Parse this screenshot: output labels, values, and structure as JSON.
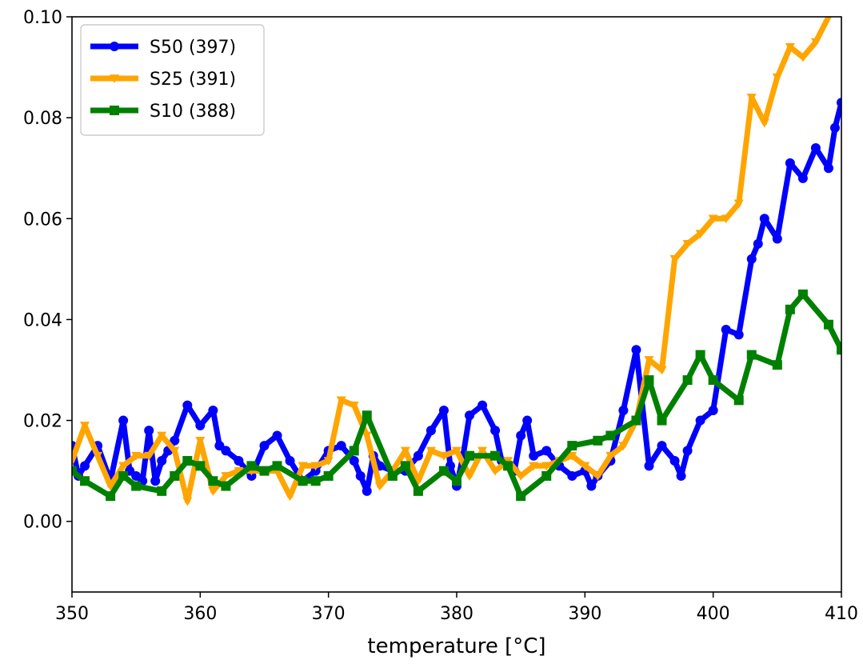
{
  "chart_data": {
    "type": "line",
    "title": "",
    "xlabel": "temperature [°C]",
    "ylabel": "",
    "xlim": [
      350,
      410
    ],
    "ylim": [
      -0.014,
      0.1
    ],
    "grid": false,
    "legend_position": "upper-left",
    "x_ticks": [
      350,
      360,
      370,
      380,
      390,
      400,
      410
    ],
    "x_tick_labels": [
      "350",
      "360",
      "370",
      "380",
      "390",
      "400",
      "410"
    ],
    "y_ticks": [
      0.0,
      0.02,
      0.04,
      0.06,
      0.08,
      0.1
    ],
    "y_tick_labels": [
      "0.00",
      "0.02",
      "0.04",
      "0.06",
      "0.08",
      "0.10"
    ],
    "series": [
      {
        "name": "S50 (397)",
        "color": "#0000ff",
        "marker": "circle",
        "points": [
          [
            350,
            0.015
          ],
          [
            350.5,
            0.009
          ],
          [
            351,
            0.011
          ],
          [
            352,
            0.015
          ],
          [
            353,
            0.008
          ],
          [
            354,
            0.02
          ],
          [
            354.5,
            0.01
          ],
          [
            355,
            0.009
          ],
          [
            355.5,
            0.008
          ],
          [
            356,
            0.018
          ],
          [
            356.5,
            0.008
          ],
          [
            357,
            0.012
          ],
          [
            357.5,
            0.014
          ],
          [
            358,
            0.016
          ],
          [
            359,
            0.023
          ],
          [
            360,
            0.019
          ],
          [
            361,
            0.022
          ],
          [
            361.5,
            0.015
          ],
          [
            362,
            0.014
          ],
          [
            363,
            0.012
          ],
          [
            364,
            0.009
          ],
          [
            365,
            0.015
          ],
          [
            366,
            0.017
          ],
          [
            367,
            0.012
          ],
          [
            368,
            0.008
          ],
          [
            369,
            0.01
          ],
          [
            370,
            0.014
          ],
          [
            371,
            0.015
          ],
          [
            372,
            0.012
          ],
          [
            372.5,
            0.009
          ],
          [
            373,
            0.006
          ],
          [
            373.5,
            0.013
          ],
          [
            374,
            0.011
          ],
          [
            375,
            0.01
          ],
          [
            376,
            0.01
          ],
          [
            377,
            0.013
          ],
          [
            378,
            0.018
          ],
          [
            379,
            0.022
          ],
          [
            379.5,
            0.011
          ],
          [
            380,
            0.007
          ],
          [
            380.5,
            0.013
          ],
          [
            381,
            0.021
          ],
          [
            382,
            0.023
          ],
          [
            383,
            0.018
          ],
          [
            383.5,
            0.012
          ],
          [
            384,
            0.011
          ],
          [
            384.5,
            0.01
          ],
          [
            385,
            0.017
          ],
          [
            385.5,
            0.02
          ],
          [
            386,
            0.013
          ],
          [
            387,
            0.014
          ],
          [
            388,
            0.011
          ],
          [
            389,
            0.009
          ],
          [
            390,
            0.01
          ],
          [
            390.5,
            0.007
          ],
          [
            391,
            0.009
          ],
          [
            392,
            0.012
          ],
          [
            393,
            0.022
          ],
          [
            394,
            0.034
          ],
          [
            395,
            0.011
          ],
          [
            396,
            0.015
          ],
          [
            397,
            0.012
          ],
          [
            397.5,
            0.009
          ],
          [
            398,
            0.014
          ],
          [
            399,
            0.02
          ],
          [
            400,
            0.022
          ],
          [
            401,
            0.038
          ],
          [
            402,
            0.037
          ],
          [
            403,
            0.052
          ],
          [
            403.5,
            0.055
          ],
          [
            404,
            0.06
          ],
          [
            405,
            0.056
          ],
          [
            406,
            0.071
          ],
          [
            407,
            0.068
          ],
          [
            408,
            0.074
          ],
          [
            409,
            0.07
          ],
          [
            409.5,
            0.078
          ],
          [
            410,
            0.083
          ]
        ]
      },
      {
        "name": "S25 (391)",
        "color": "#ffa500",
        "marker": "triangle-down",
        "points": [
          [
            350,
            0.012
          ],
          [
            351,
            0.019
          ],
          [
            352,
            0.013
          ],
          [
            353,
            0.007
          ],
          [
            354,
            0.011
          ],
          [
            355,
            0.013
          ],
          [
            356,
            0.013
          ],
          [
            357,
            0.017
          ],
          [
            358,
            0.014
          ],
          [
            359,
            0.004
          ],
          [
            360,
            0.016
          ],
          [
            361,
            0.006
          ],
          [
            362,
            0.009
          ],
          [
            363,
            0.01
          ],
          [
            364,
            0.01
          ],
          [
            365,
            0.01
          ],
          [
            366,
            0.01
          ],
          [
            367,
            0.005
          ],
          [
            368,
            0.011
          ],
          [
            369,
            0.011
          ],
          [
            370,
            0.012
          ],
          [
            371,
            0.024
          ],
          [
            372,
            0.023
          ],
          [
            373,
            0.017
          ],
          [
            374,
            0.007
          ],
          [
            375,
            0.01
          ],
          [
            376,
            0.014
          ],
          [
            377,
            0.008
          ],
          [
            378,
            0.014
          ],
          [
            379,
            0.013
          ],
          [
            380,
            0.014
          ],
          [
            381,
            0.009
          ],
          [
            382,
            0.014
          ],
          [
            383,
            0.01
          ],
          [
            384,
            0.012
          ],
          [
            385,
            0.009
          ],
          [
            386,
            0.011
          ],
          [
            387,
            0.011
          ],
          [
            388,
            0.012
          ],
          [
            389,
            0.013
          ],
          [
            390,
            0.011
          ],
          [
            391,
            0.009
          ],
          [
            392,
            0.013
          ],
          [
            393,
            0.015
          ],
          [
            394,
            0.02
          ],
          [
            395,
            0.032
          ],
          [
            396,
            0.03
          ],
          [
            397,
            0.052
          ],
          [
            398,
            0.055
          ],
          [
            399,
            0.057
          ],
          [
            400,
            0.06
          ],
          [
            401,
            0.06
          ],
          [
            402,
            0.063
          ],
          [
            403,
            0.084
          ],
          [
            404,
            0.079
          ],
          [
            405,
            0.088
          ],
          [
            406,
            0.094
          ],
          [
            407,
            0.092
          ],
          [
            408,
            0.095
          ],
          [
            409,
            0.1
          ]
        ]
      },
      {
        "name": "S10 (388)",
        "color": "#008000",
        "marker": "square",
        "points": [
          [
            350,
            0.01
          ],
          [
            351,
            0.008
          ],
          [
            353,
            0.005
          ],
          [
            354,
            0.009
          ],
          [
            355,
            0.007
          ],
          [
            357,
            0.006
          ],
          [
            358,
            0.009
          ],
          [
            359,
            0.012
          ],
          [
            360,
            0.011
          ],
          [
            361,
            0.008
          ],
          [
            362,
            0.007
          ],
          [
            364,
            0.011
          ],
          [
            365,
            0.01
          ],
          [
            366,
            0.011
          ],
          [
            368,
            0.008
          ],
          [
            369,
            0.008
          ],
          [
            370,
            0.009
          ],
          [
            372,
            0.014
          ],
          [
            373,
            0.021
          ],
          [
            375,
            0.009
          ],
          [
            376,
            0.011
          ],
          [
            377,
            0.006
          ],
          [
            379,
            0.01
          ],
          [
            380,
            0.008
          ],
          [
            381,
            0.013
          ],
          [
            383,
            0.013
          ],
          [
            384,
            0.011
          ],
          [
            385,
            0.005
          ],
          [
            387,
            0.009
          ],
          [
            389,
            0.015
          ],
          [
            391,
            0.016
          ],
          [
            392,
            0.017
          ],
          [
            394,
            0.02
          ],
          [
            395,
            0.028
          ],
          [
            396,
            0.02
          ],
          [
            398,
            0.028
          ],
          [
            399,
            0.033
          ],
          [
            400,
            0.028
          ],
          [
            402,
            0.024
          ],
          [
            403,
            0.033
          ],
          [
            405,
            0.031
          ],
          [
            406,
            0.042
          ],
          [
            407,
            0.045
          ],
          [
            409,
            0.039
          ],
          [
            410,
            0.034
          ]
        ]
      }
    ]
  }
}
